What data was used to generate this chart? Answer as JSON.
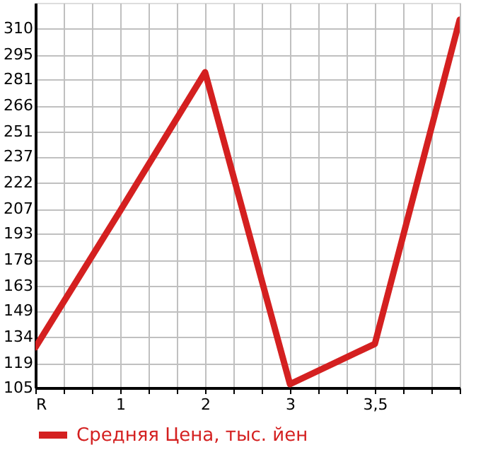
{
  "chart_data": {
    "type": "line",
    "categories": [
      "R",
      "1",
      "2",
      "3",
      "3,5",
      null
    ],
    "series": [
      {
        "name": "Средняя Цена, тыс. йен",
        "color": "#d42020",
        "values": [
          128,
          206,
          285,
          107,
          130,
          315
        ]
      }
    ],
    "ylim": [
      105,
      324.6
    ],
    "yticks": [
      105,
      119,
      134,
      149,
      163,
      178,
      193,
      207,
      222,
      237,
      251,
      266,
      281,
      295,
      310
    ],
    "grid": true,
    "legend": "bottom left",
    "line_style": "solid"
  }
}
